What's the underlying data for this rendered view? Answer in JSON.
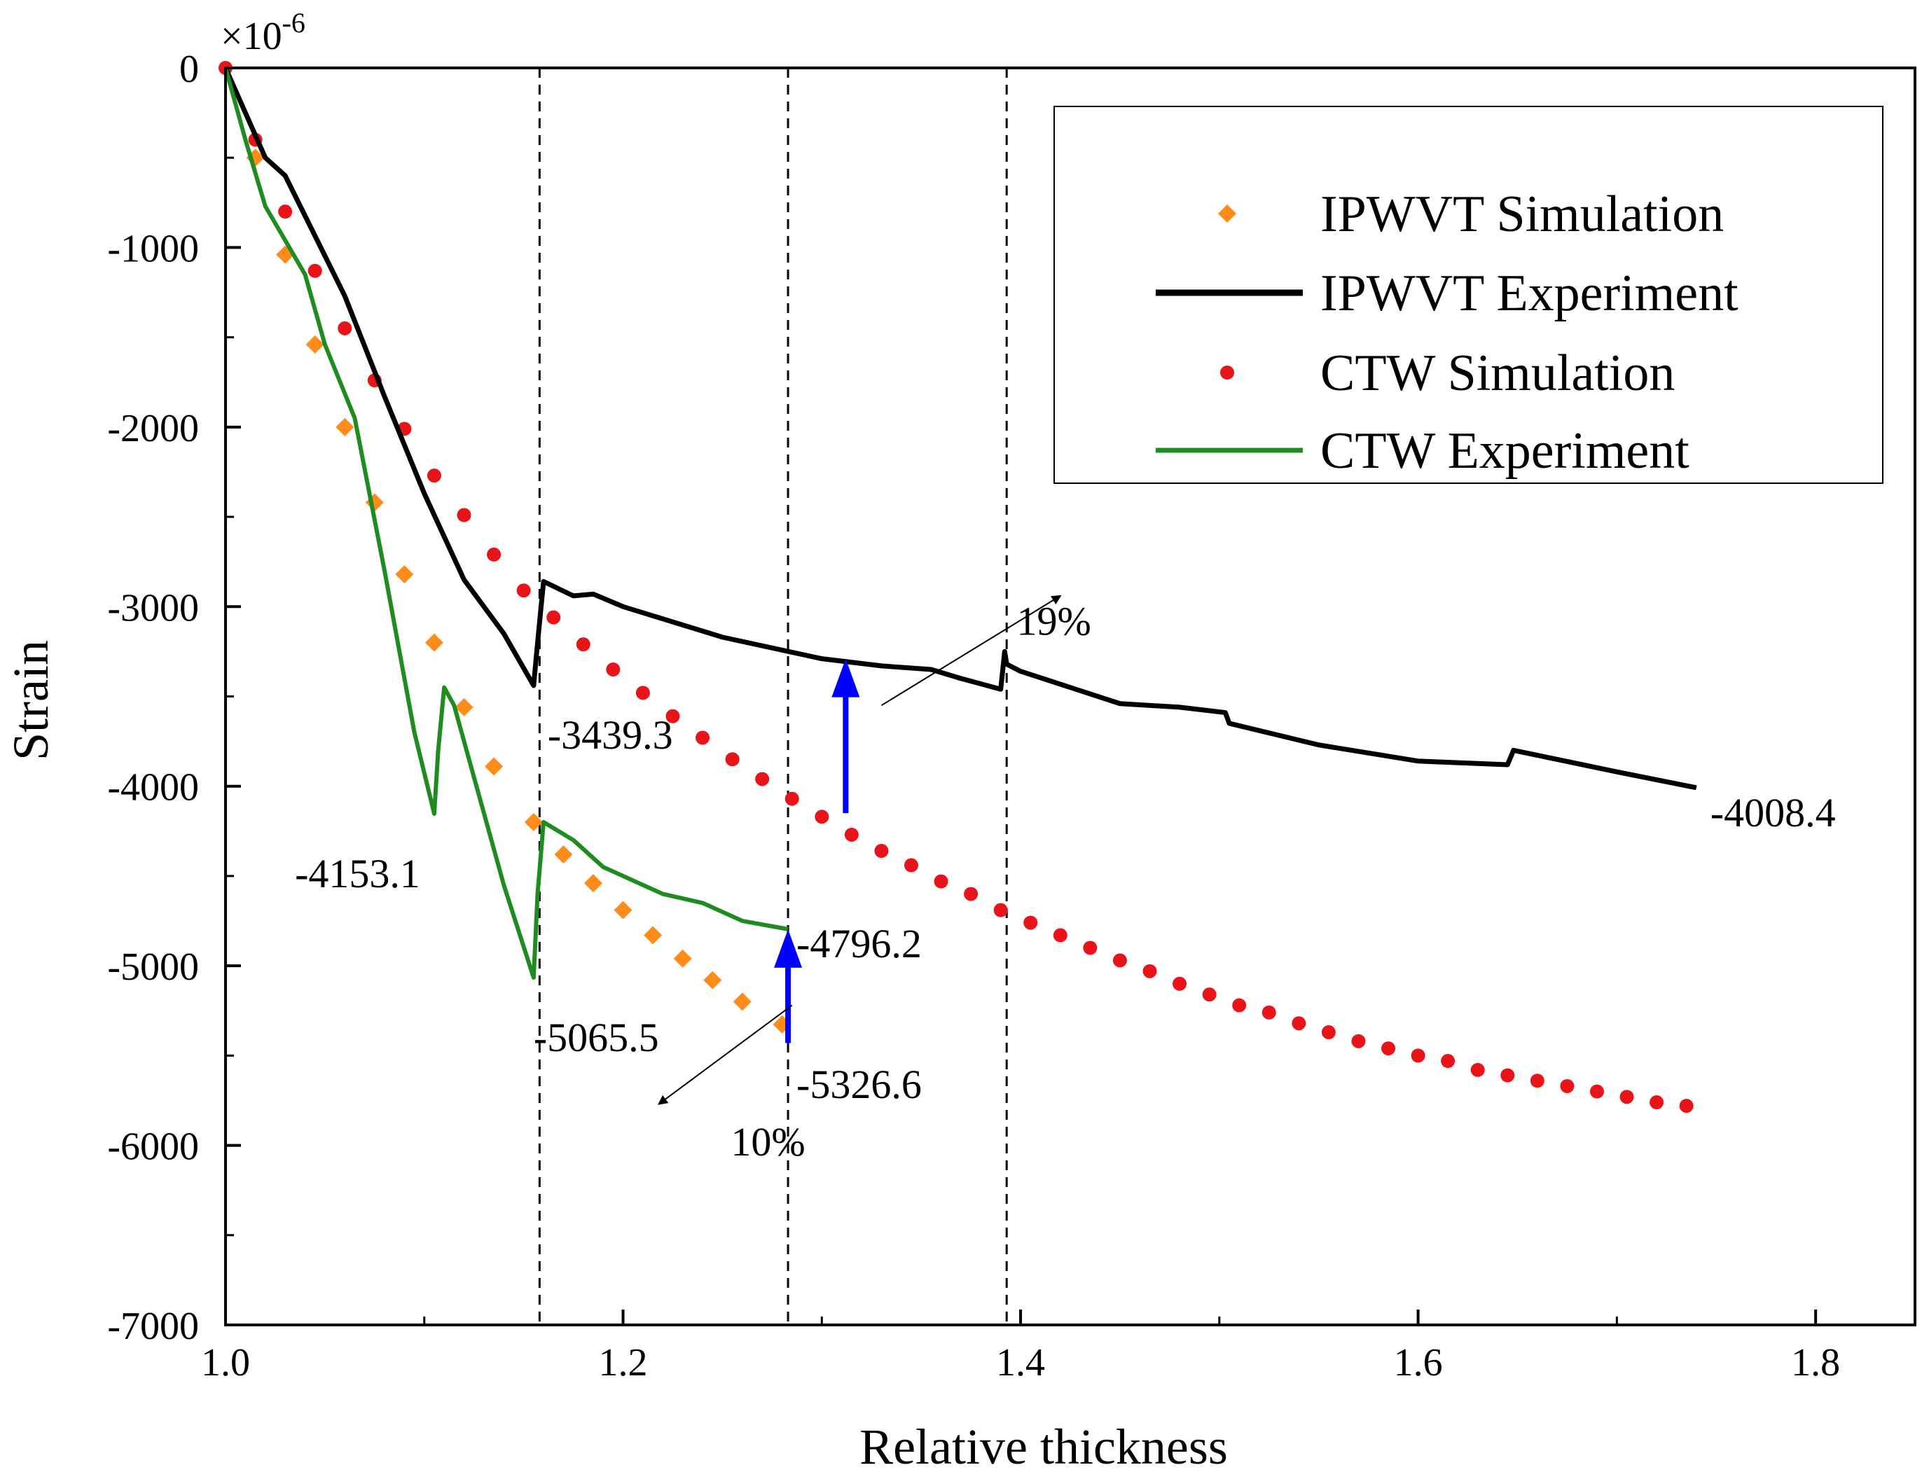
{
  "chart_data": {
    "type": "line",
    "title": "",
    "xlabel": "Relative thickness",
    "ylabel": "Strain",
    "y_multiplier": "×10",
    "y_multiplier_exp": "-6",
    "xlim": [
      1.0,
      1.85
    ],
    "ylim": [
      -7000,
      0
    ],
    "xticks": [
      1.0,
      1.2,
      1.4,
      1.6,
      1.8
    ],
    "xtick_labels": [
      "1.0",
      "1.2",
      "1.4",
      "1.6",
      "1.8"
    ],
    "yticks": [
      0,
      -1000,
      -2000,
      -3000,
      -4000,
      -5000,
      -6000,
      -7000
    ],
    "ytick_labels": [
      "0",
      "-1000",
      "-2000",
      "-3000",
      "-4000",
      "-5000",
      "-6000",
      "-7000"
    ],
    "legend_position": "top-right",
    "series": [
      {
        "name": "IPWVT Simulation",
        "style": "diamond-markers",
        "color": "#FF8C1A",
        "x": [
          1.015,
          1.03,
          1.045,
          1.06,
          1.075,
          1.09,
          1.105,
          1.12,
          1.135,
          1.155,
          1.17,
          1.185,
          1.2,
          1.215,
          1.23,
          1.245,
          1.26,
          1.28
        ],
        "values": [
          -500,
          -1040,
          -1540,
          -2000,
          -2420,
          -2820,
          -3200,
          -3560,
          -3890,
          -4200,
          -4380,
          -4540,
          -4690,
          -4830,
          -4960,
          -5080,
          -5200,
          -5326.6
        ]
      },
      {
        "name": "IPWVT Experiment",
        "style": "line",
        "color": "#000000",
        "x": [
          1.0,
          1.02,
          1.03,
          1.06,
          1.08,
          1.1,
          1.12,
          1.14,
          1.155,
          1.157,
          1.16,
          1.175,
          1.185,
          1.2,
          1.25,
          1.3,
          1.33,
          1.355,
          1.37,
          1.39,
          1.392,
          1.393,
          1.4,
          1.45,
          1.48,
          1.503,
          1.505,
          1.55,
          1.6,
          1.645,
          1.648,
          1.7,
          1.74
        ],
        "values": [
          0,
          -500,
          -600,
          -1270,
          -1830,
          -2370,
          -2850,
          -3150,
          -3439.3,
          -3200,
          -2860,
          -2940,
          -2930,
          -3000,
          -3170,
          -3290,
          -3330,
          -3350,
          -3400,
          -3460,
          -3250,
          -3320,
          -3360,
          -3540,
          -3560,
          -3590,
          -3650,
          -3770,
          -3860,
          -3880,
          -3800,
          -3920,
          -4008.4
        ]
      },
      {
        "name": "CTW Simulation",
        "style": "circle-markers",
        "color": "#E8141A",
        "x": [
          1.0,
          1.015,
          1.03,
          1.045,
          1.06,
          1.075,
          1.09,
          1.105,
          1.12,
          1.135,
          1.15,
          1.165,
          1.18,
          1.195,
          1.21,
          1.225,
          1.24,
          1.255,
          1.27,
          1.285,
          1.3,
          1.315,
          1.33,
          1.345,
          1.36,
          1.375,
          1.39,
          1.405,
          1.42,
          1.435,
          1.45,
          1.465,
          1.48,
          1.495,
          1.51,
          1.525,
          1.54,
          1.555,
          1.57,
          1.585,
          1.6,
          1.615,
          1.63,
          1.645,
          1.66,
          1.675,
          1.69,
          1.705,
          1.72,
          1.735
        ],
        "values": [
          0,
          -400,
          -800,
          -1130,
          -1450,
          -1740,
          -2010,
          -2270,
          -2490,
          -2710,
          -2910,
          -3060,
          -3210,
          -3350,
          -3480,
          -3610,
          -3730,
          -3850,
          -3960,
          -4070,
          -4170,
          -4270,
          -4360,
          -4440,
          -4530,
          -4600,
          -4690,
          -4760,
          -4830,
          -4900,
          -4970,
          -5030,
          -5100,
          -5160,
          -5220,
          -5260,
          -5320,
          -5370,
          -5420,
          -5460,
          -5500,
          -5530,
          -5580,
          -5610,
          -5640,
          -5670,
          -5700,
          -5730,
          -5760,
          -5780
        ]
      },
      {
        "name": "CTW Experiment",
        "style": "line",
        "color": "#1E8C1E",
        "x": [
          1.0,
          1.01,
          1.02,
          1.04,
          1.05,
          1.065,
          1.08,
          1.095,
          1.105,
          1.107,
          1.11,
          1.115,
          1.125,
          1.14,
          1.155,
          1.157,
          1.16,
          1.175,
          1.19,
          1.2,
          1.22,
          1.24,
          1.26,
          1.283
        ],
        "values": [
          0,
          -400,
          -770,
          -1150,
          -1540,
          -1950,
          -2800,
          -3700,
          -4153.1,
          -3800,
          -3450,
          -3550,
          -3950,
          -4550,
          -5065.5,
          -4600,
          -4200,
          -4300,
          -4450,
          -4500,
          -4600,
          -4650,
          -4750,
          -4796.2
        ]
      }
    ],
    "reference_lines_x": [
      1.158,
      1.393,
      1.283
    ],
    "annotations": [
      {
        "text": "-3439.3",
        "x": 1.155,
        "y": -3439.3
      },
      {
        "text": "-4153.1",
        "x": 1.105,
        "y": -4153.1
      },
      {
        "text": "-5065.5",
        "x": 1.155,
        "y": -5065.5
      },
      {
        "text": "-4796.2",
        "x": 1.283,
        "y": -4796.2
      },
      {
        "text": "-5326.6",
        "x": 1.283,
        "y": -5326.6
      },
      {
        "text": "-4008.4",
        "x": 1.74,
        "y": -4008.4
      },
      {
        "text": "19%",
        "x": 1.36,
        "y": -3000
      },
      {
        "text": "10%",
        "x": 1.25,
        "y": -5900
      }
    ],
    "arrows": [
      {
        "name": "ctw-to-ipwvt-gap-arrow",
        "color": "#0000FF",
        "x": 1.312,
        "from": -4150,
        "to": -3290,
        "label": "19%"
      },
      {
        "name": "ctw-exp-to-sim-gap-arrow",
        "color": "#0000FF",
        "x": 1.283,
        "from": -5430,
        "to": -4796.2,
        "label": "10%"
      }
    ]
  }
}
